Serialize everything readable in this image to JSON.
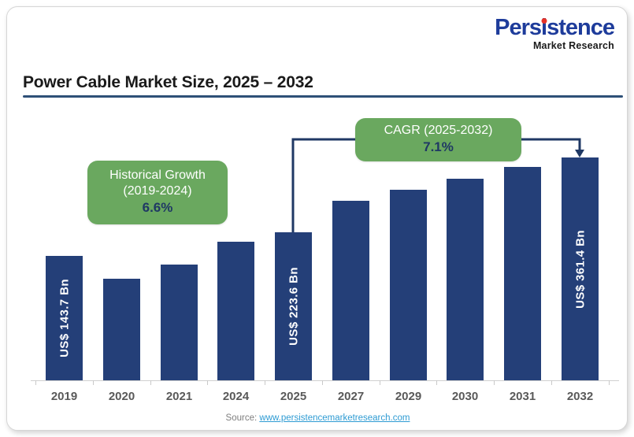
{
  "logo": {
    "brand_pre": "Pers",
    "brand_i": "i",
    "brand_post": "stence",
    "subtitle": "Market Research"
  },
  "header": {
    "title": "Power Cable Market Size, 2025 – 2032"
  },
  "chart_data": {
    "type": "bar",
    "title": "Power Cable Market Size, 2025 – 2032",
    "unit": "US$ Bn",
    "xlabel": "",
    "ylabel": "",
    "grid": false,
    "legend": "none",
    "categories": [
      "2019",
      "2020",
      "2021",
      "2024",
      "2025",
      "2027",
      "2029",
      "2030",
      "2031",
      "2032"
    ],
    "bars": [
      {
        "year": "2019",
        "value_label": "US$ 143.7 Bn",
        "value": 143.7,
        "rel_height": 0.558
      },
      {
        "year": "2020",
        "value_label": "",
        "value": null,
        "rel_height": 0.456
      },
      {
        "year": "2021",
        "value_label": "",
        "value": null,
        "rel_height": 0.519
      },
      {
        "year": "2024",
        "value_label": "",
        "value": 197.7,
        "rel_height": 0.622
      },
      {
        "year": "2025",
        "value_label": "US$ 223.6 Bn",
        "value": 223.6,
        "rel_height": 0.664
      },
      {
        "year": "2027",
        "value_label": "",
        "value": 256.4,
        "rel_height": 0.806
      },
      {
        "year": "2029",
        "value_label": "",
        "value": 294.1,
        "rel_height": 0.855
      },
      {
        "year": "2030",
        "value_label": "",
        "value": 315.0,
        "rel_height": 0.905
      },
      {
        "year": "2031",
        "value_label": "",
        "value": 337.4,
        "rel_height": 0.958
      },
      {
        "year": "2032",
        "value_label": "US$ 361.4 Bn",
        "value": 361.4,
        "rel_height": 1.0
      }
    ],
    "annotations": {
      "historical": {
        "line1": "Historical Growth",
        "line2": "(2019-2024)",
        "value": "6.6%"
      },
      "cagr": {
        "line1": "CAGR (2025-2032)",
        "value": "7.1%"
      }
    }
  },
  "source": {
    "prefix": "Source: ",
    "link": "www.persistencemarketresearch.com"
  },
  "colors": {
    "bar": "#243F78",
    "connector": "#1F3864",
    "green_box": "#6AA85F",
    "title_rule": "#2E5077",
    "axis_label": "#595959",
    "value_label": "#FFFFFF",
    "annotation_value": "#1F3864",
    "link": "#2E9BD3",
    "source_text": "#7F7F7F",
    "logo_blue": "#1E3C9B",
    "logo_red": "#E63329",
    "logo_sub": "#1A1A1A"
  }
}
